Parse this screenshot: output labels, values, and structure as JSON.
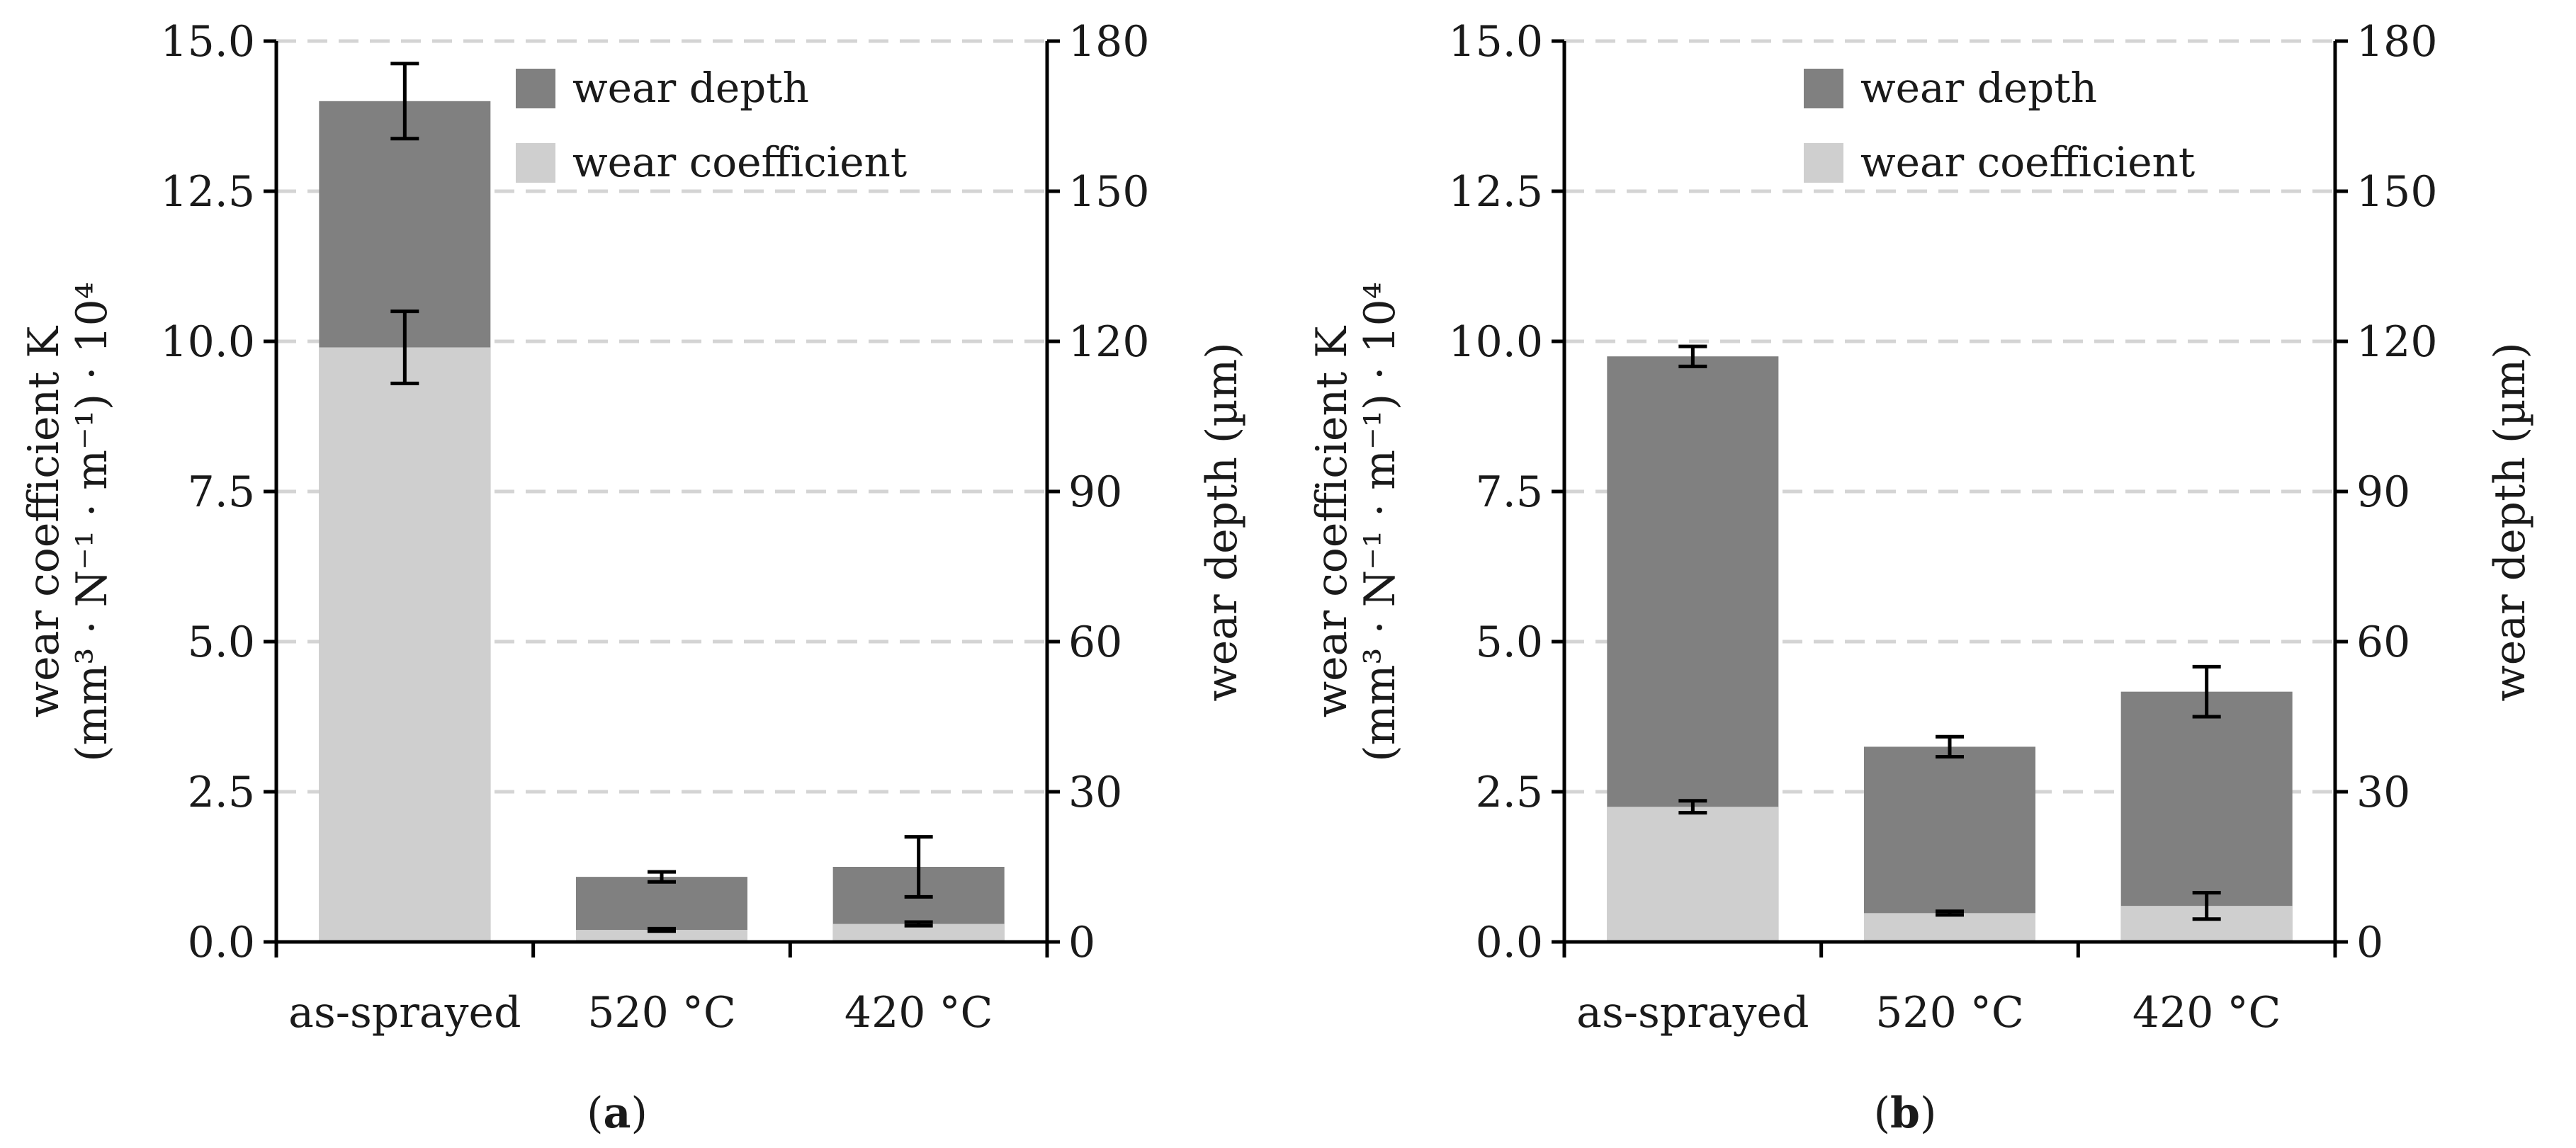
{
  "chart_data": [
    {
      "type": "bar",
      "panel_label": "a",
      "categories": [
        "as-sprayed",
        "520 °C",
        "420 °C"
      ],
      "left_axis": {
        "ylabel_line1": "wear coefficient K",
        "ylabel_line2": "(mm³ · N⁻¹ · m⁻¹) · 10⁴",
        "ylim": [
          0,
          15
        ],
        "ticks": [
          "0.0",
          "2.5",
          "5.0",
          "7.5",
          "10.0",
          "12.5",
          "15.0"
        ]
      },
      "right_axis": {
        "ylabel": "wear depth (µm)",
        "ylim": [
          0,
          180
        ],
        "ticks": [
          "0",
          "30",
          "60",
          "90",
          "120",
          "150",
          "180"
        ]
      },
      "grid": true,
      "legend": {
        "position": "top-right",
        "entries": [
          "wear depth",
          "wear coefficient"
        ]
      },
      "series": [
        {
          "name": "wear depth",
          "axis": "right",
          "color": "#808080",
          "values": [
            168,
            13,
            15
          ],
          "errors": [
            7.5,
            1,
            6
          ]
        },
        {
          "name": "wear coefficient",
          "axis": "left",
          "color": "#cfcfcf",
          "values": [
            9.9,
            0.2,
            0.3
          ],
          "errors": [
            0.6,
            0.02,
            0.03
          ]
        }
      ]
    },
    {
      "type": "bar",
      "panel_label": "b",
      "categories": [
        "as-sprayed",
        "520 °C",
        "420 °C"
      ],
      "left_axis": {
        "ylabel_line1": "wear coefficient K",
        "ylabel_line2": "(mm³ · N⁻¹ · m⁻¹) · 10⁴",
        "ylim": [
          0,
          15
        ],
        "ticks": [
          "0.0",
          "2.5",
          "5.0",
          "7.5",
          "10.0",
          "12.5",
          "15.0"
        ]
      },
      "right_axis": {
        "ylabel": "wear depth (µm)",
        "ylim": [
          0,
          180
        ],
        "ticks": [
          "0",
          "30",
          "60",
          "90",
          "120",
          "150",
          "180"
        ]
      },
      "grid": true,
      "legend": {
        "position": "top-right",
        "entries": [
          "wear depth",
          "wear coefficient"
        ]
      },
      "series": [
        {
          "name": "wear depth",
          "axis": "right",
          "color": "#808080",
          "values": [
            117,
            39,
            50
          ],
          "errors": [
            2,
            2,
            5
          ]
        },
        {
          "name": "wear coefficient",
          "axis": "left",
          "color": "#cfcfcf",
          "values": [
            2.25,
            0.48,
            0.6
          ],
          "errors": [
            0.1,
            0.03,
            0.22
          ]
        }
      ]
    }
  ]
}
